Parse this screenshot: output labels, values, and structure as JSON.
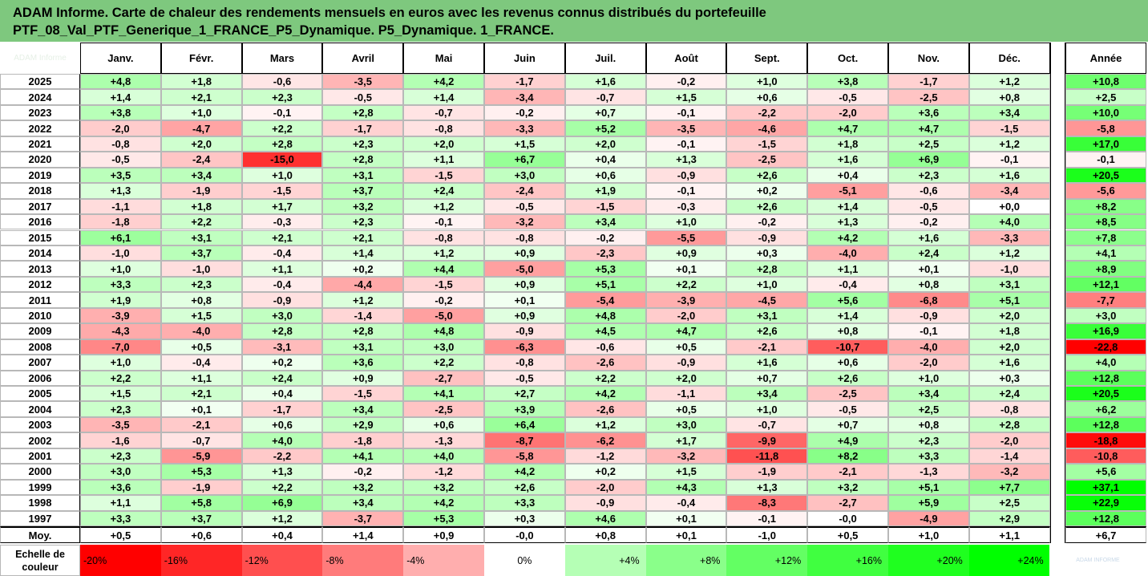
{
  "title": {
    "line1": "ADAM Informe. Carte de chaleur des rendements mensuels en euros avec les revenus connus distribués du portefeuille",
    "line2": "PTF_08_Val_PTF_Generique_1_FRANCE_P5_Dynamique. P5_Dynamique. 1_FRANCE."
  },
  "corner_text": "ADAM Informe",
  "logo_text": "ADAM INFORME",
  "chart_data": {
    "type": "heatmap",
    "columns": [
      "Janv.",
      "Févr.",
      "Mars",
      "Avril",
      "Mai",
      "Juin",
      "Juil.",
      "Août",
      "Sept.",
      "Oct.",
      "Nov.",
      "Déc."
    ],
    "annual_header": "Année",
    "rows": [
      {
        "year": "2025",
        "values": [
          "+4,8",
          "+1,8",
          "-0,6",
          "-3,5",
          "+4,2",
          "-1,7",
          "+1,6",
          "-0,2",
          "+1,0",
          "+3,8",
          "-1,7",
          "+1,2"
        ],
        "annual": "+10,8"
      },
      {
        "year": "2024",
        "values": [
          "+1,4",
          "+2,1",
          "+2,3",
          "-0,5",
          "+1,4",
          "-3,4",
          "-0,7",
          "+1,5",
          "+0,6",
          "-0,5",
          "-2,5",
          "+0,8"
        ],
        "annual": "+2,5"
      },
      {
        "year": "2023",
        "values": [
          "+3,8",
          "+1,0",
          "-0,1",
          "+2,8",
          "-0,7",
          "-0,2",
          "+0,7",
          "-0,1",
          "-2,2",
          "-2,0",
          "+3,6",
          "+3,4"
        ],
        "annual": "+10,0"
      },
      {
        "year": "2022",
        "values": [
          "-2,0",
          "-4,7",
          "+2,2",
          "-1,7",
          "-0,8",
          "-3,3",
          "+5,2",
          "-3,5",
          "-4,6",
          "+4,7",
          "+4,7",
          "-1,5"
        ],
        "annual": "-5,8"
      },
      {
        "year": "2021",
        "values": [
          "-0,8",
          "+2,0",
          "+2,8",
          "+2,3",
          "+2,0",
          "+1,5",
          "+2,0",
          "-0,1",
          "-1,5",
          "+1,8",
          "+2,5",
          "+1,2"
        ],
        "annual": "+17,0"
      },
      {
        "year": "2020",
        "values": [
          "-0,5",
          "-2,4",
          "-15,0",
          "+2,8",
          "+1,1",
          "+6,7",
          "+0,4",
          "+1,3",
          "-2,5",
          "+1,6",
          "+6,9",
          "-0,1"
        ],
        "annual": "-0,1"
      },
      {
        "year": "2019",
        "values": [
          "+3,5",
          "+3,4",
          "+1,0",
          "+3,1",
          "-1,5",
          "+3,0",
          "+0,6",
          "-0,9",
          "+2,6",
          "+0,4",
          "+2,3",
          "+1,6"
        ],
        "annual": "+20,5"
      },
      {
        "year": "2018",
        "values": [
          "+1,3",
          "-1,9",
          "-1,5",
          "+3,7",
          "+2,4",
          "-2,4",
          "+1,9",
          "-0,1",
          "+0,2",
          "-5,1",
          "-0,6",
          "-3,4"
        ],
        "annual": "-5,6"
      },
      {
        "year": "2017",
        "values": [
          "-1,1",
          "+1,8",
          "+1,7",
          "+3,2",
          "+1,2",
          "-0,5",
          "-1,5",
          "-0,3",
          "+2,6",
          "+1,4",
          "-0,5",
          "+0,0"
        ],
        "annual": "+8,2"
      },
      {
        "year": "2016",
        "values": [
          "-1,8",
          "+2,2",
          "-0,3",
          "+2,3",
          "-0,1",
          "-3,2",
          "+3,4",
          "+1,0",
          "-0,2",
          "+1,3",
          "-0,2",
          "+4,0"
        ],
        "annual": "+8,5"
      },
      {
        "year": "2015",
        "values": [
          "+6,1",
          "+3,1",
          "+2,1",
          "+2,1",
          "-0,8",
          "-0,8",
          "-0,2",
          "-5,5",
          "-0,9",
          "+4,2",
          "+1,6",
          "-3,3"
        ],
        "annual": "+7,8"
      },
      {
        "year": "2014",
        "values": [
          "-1,0",
          "+3,7",
          "-0,4",
          "+1,4",
          "+1,2",
          "+0,9",
          "-2,3",
          "+0,9",
          "+0,3",
          "-4,0",
          "+2,4",
          "+1,2"
        ],
        "annual": "+4,1"
      },
      {
        "year": "2013",
        "values": [
          "+1,0",
          "-1,0",
          "+1,1",
          "+0,2",
          "+4,4",
          "-5,0",
          "+5,3",
          "+0,1",
          "+2,8",
          "+1,1",
          "+0,1",
          "-1,0"
        ],
        "annual": "+8,9"
      },
      {
        "year": "2012",
        "values": [
          "+3,3",
          "+2,3",
          "-0,4",
          "-4,4",
          "-1,5",
          "+0,9",
          "+5,1",
          "+2,2",
          "+1,0",
          "-0,4",
          "+0,8",
          "+3,1"
        ],
        "annual": "+12,1"
      },
      {
        "year": "2011",
        "values": [
          "+1,9",
          "+0,8",
          "-0,9",
          "+1,2",
          "-0,2",
          "+0,1",
          "-5,4",
          "-3,9",
          "-4,5",
          "+5,6",
          "-6,8",
          "+5,1"
        ],
        "annual": "-7,7"
      },
      {
        "year": "2010",
        "values": [
          "-3,9",
          "+1,5",
          "+3,0",
          "-1,4",
          "-5,0",
          "+0,9",
          "+4,8",
          "-2,0",
          "+3,1",
          "+1,4",
          "-0,9",
          "+2,0"
        ],
        "annual": "+3,0"
      },
      {
        "year": "2009",
        "values": [
          "-4,3",
          "-4,0",
          "+2,8",
          "+2,8",
          "+4,8",
          "-0,9",
          "+4,5",
          "+4,7",
          "+2,6",
          "+0,8",
          "-0,1",
          "+1,8"
        ],
        "annual": "+16,9"
      },
      {
        "year": "2008",
        "values": [
          "-7,0",
          "+0,5",
          "-3,1",
          "+3,1",
          "+3,0",
          "-6,3",
          "-0,6",
          "+0,5",
          "-2,1",
          "-10,7",
          "-4,0",
          "+2,0"
        ],
        "annual": "-22,8"
      },
      {
        "year": "2007",
        "values": [
          "+1,0",
          "-0,4",
          "+0,2",
          "+3,6",
          "+2,2",
          "-0,8",
          "-2,6",
          "-0,9",
          "+1,6",
          "+0,6",
          "-2,0",
          "+1,6"
        ],
        "annual": "+4,0"
      },
      {
        "year": "2006",
        "values": [
          "+2,2",
          "+1,1",
          "+2,4",
          "+0,9",
          "-2,7",
          "-0,5",
          "+2,2",
          "+2,0",
          "+0,7",
          "+2,6",
          "+1,0",
          "+0,3"
        ],
        "annual": "+12,8"
      },
      {
        "year": "2005",
        "values": [
          "+1,5",
          "+2,1",
          "+0,4",
          "-1,5",
          "+4,1",
          "+2,7",
          "+4,2",
          "-1,1",
          "+3,4",
          "-2,5",
          "+3,4",
          "+2,4"
        ],
        "annual": "+20,5"
      },
      {
        "year": "2004",
        "values": [
          "+2,3",
          "+0,1",
          "-1,7",
          "+3,4",
          "-2,5",
          "+3,9",
          "-2,6",
          "+0,5",
          "+1,0",
          "-0,5",
          "+2,5",
          "-0,8"
        ],
        "annual": "+6,2"
      },
      {
        "year": "2003",
        "values": [
          "-3,5",
          "-2,1",
          "+0,6",
          "+2,9",
          "+0,6",
          "+6,4",
          "+1,2",
          "+3,0",
          "-0,7",
          "+0,7",
          "+0,8",
          "+2,8"
        ],
        "annual": "+12,8"
      },
      {
        "year": "2002",
        "values": [
          "-1,6",
          "-0,7",
          "+4,0",
          "-1,8",
          "-1,3",
          "-8,7",
          "-6,2",
          "+1,7",
          "-9,9",
          "+4,9",
          "+2,3",
          "-2,0"
        ],
        "annual": "-18,8"
      },
      {
        "year": "2001",
        "values": [
          "+2,3",
          "-5,9",
          "-2,2",
          "+4,1",
          "+4,0",
          "-5,8",
          "-1,2",
          "-3,2",
          "-11,8",
          "+8,2",
          "+3,3",
          "-1,4"
        ],
        "annual": "-10,8"
      },
      {
        "year": "2000",
        "values": [
          "+3,0",
          "+5,3",
          "+1,3",
          "-0,2",
          "-1,2",
          "+4,2",
          "+0,2",
          "+1,5",
          "-1,9",
          "-2,1",
          "-1,3",
          "-3,2"
        ],
        "annual": "+5,6"
      },
      {
        "year": "1999",
        "values": [
          "+3,6",
          "-1,9",
          "+2,2",
          "+3,2",
          "+3,2",
          "+2,6",
          "-2,0",
          "+4,3",
          "+1,3",
          "+3,2",
          "+5,1",
          "+7,7"
        ],
        "annual": "+37,1"
      },
      {
        "year": "1998",
        "values": [
          "+1,1",
          "+5,8",
          "+6,9",
          "+3,4",
          "+4,2",
          "+3,3",
          "-0,9",
          "-0,4",
          "-8,3",
          "-2,7",
          "+5,9",
          "+2,5"
        ],
        "annual": "+22,9"
      },
      {
        "year": "1997",
        "values": [
          "+3,3",
          "+3,7",
          "+1,2",
          "-3,7",
          "+5,3",
          "+0,3",
          "+4,6",
          "+0,1",
          "-0,1",
          "-0,0",
          "-4,9",
          "+2,9"
        ],
        "annual": "+12,8"
      }
    ],
    "average": {
      "label": "Moy.",
      "values": [
        "+0,5",
        "+0,6",
        "+0,4",
        "+1,4",
        "+0,9",
        "-0,0",
        "+0,8",
        "+0,1",
        "-1,0",
        "+0,5",
        "+1,0",
        "+1,1"
      ],
      "annual": "+6,7"
    },
    "scale": {
      "label_line1": "Echelle de",
      "label_line2": "couleur",
      "items": [
        "-20%",
        "-16%",
        "-12%",
        "-8%",
        "-4%",
        "0%",
        "+4%",
        "+8%",
        "+12%",
        "+16%",
        "+20%",
        "+24%"
      ],
      "levels": [
        -20,
        -16,
        -12,
        -8,
        -4,
        0,
        4,
        8,
        12,
        16,
        20,
        24
      ]
    },
    "colors": {
      "negative_max": "#ff0000",
      "positive_max": "#00ff00",
      "neutral": "#ffffff",
      "title_bg": "#7ec87e"
    }
  }
}
